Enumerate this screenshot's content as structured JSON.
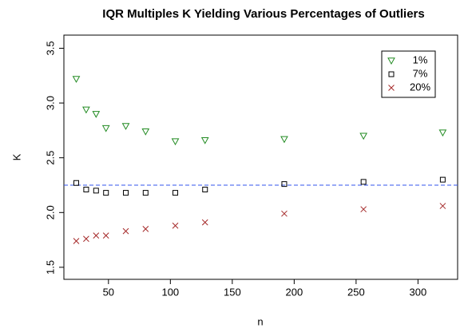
{
  "chart_data": {
    "type": "scatter",
    "title": "IQR Multiples K Yielding Various Percentages of Outliers",
    "x_label": "n",
    "y_label": "K",
    "x": [
      24,
      32,
      40,
      48,
      64,
      80,
      104,
      128,
      192,
      256,
      320
    ],
    "series": [
      {
        "name": "1%",
        "color": "#228B22",
        "marker": "triangle-down",
        "values": [
          3.22,
          2.94,
          2.9,
          2.77,
          2.79,
          2.74,
          2.65,
          2.66,
          2.67,
          2.7,
          2.73
        ]
      },
      {
        "name": "7%",
        "color": "#000000",
        "marker": "square",
        "values": [
          2.27,
          2.21,
          2.2,
          2.18,
          2.18,
          2.18,
          2.18,
          2.21,
          2.26,
          2.28,
          2.3
        ]
      },
      {
        "name": "20%",
        "color": "#A52A2A",
        "marker": "x",
        "values": [
          1.74,
          1.76,
          1.79,
          1.79,
          1.83,
          1.85,
          1.88,
          1.91,
          1.99,
          2.03,
          2.06
        ]
      }
    ],
    "hline": {
      "value": 2.25,
      "color": "#3355ee"
    },
    "xlim": [
      14,
      332
    ],
    "ylim": [
      1.39,
      3.62
    ],
    "xticks": [
      50,
      100,
      150,
      200,
      250,
      300
    ],
    "yticks": [
      {
        "value": 1.5,
        "label": "1.5"
      },
      {
        "value": 2.0,
        "label": "2.0"
      },
      {
        "value": 2.5,
        "label": "2.5"
      },
      {
        "value": 3.0,
        "label": "3.0"
      },
      {
        "value": 3.5,
        "label": "3.5"
      }
    ],
    "legend": "top-right",
    "grid": false
  }
}
